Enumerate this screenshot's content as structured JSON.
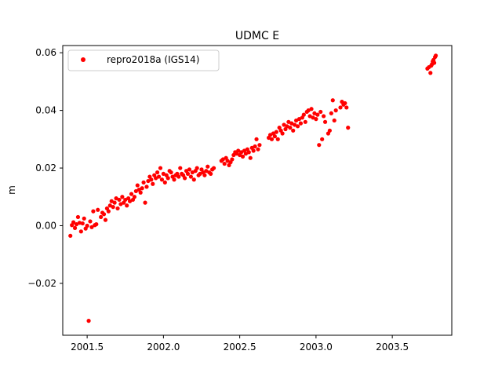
{
  "chart_data": {
    "type": "scatter",
    "title": "UDMC E",
    "xlabel": "",
    "ylabel": "m",
    "xlim": [
      2001.34,
      2003.89
    ],
    "ylim": [
      -0.038,
      0.0625
    ],
    "x_ticks": [
      2001.5,
      2002.0,
      2002.5,
      2003.0,
      2003.5
    ],
    "x_tick_labels": [
      "2001.5",
      "2002.0",
      "2002.5",
      "2003.0",
      "2003.5"
    ],
    "y_ticks": [
      -0.02,
      0.0,
      0.02,
      0.04,
      0.06
    ],
    "y_tick_labels": [
      "−0.02",
      "0.00",
      "0.02",
      "0.04",
      "0.06"
    ],
    "grid": false,
    "legend_position": "top-left",
    "series": [
      {
        "name": "repro2018a (IGS14)",
        "color": "#ff0000",
        "marker": "circle",
        "points": [
          [
            2001.39,
            -0.0035
          ],
          [
            2001.4,
            0.0002
          ],
          [
            2001.41,
            0.0012
          ],
          [
            2001.42,
            -0.0008
          ],
          [
            2001.43,
            0.0005
          ],
          [
            2001.44,
            0.003
          ],
          [
            2001.45,
            0.001
          ],
          [
            2001.46,
            -0.002
          ],
          [
            2001.47,
            0.0008
          ],
          [
            2001.48,
            0.0025
          ],
          [
            2001.49,
            -0.001
          ],
          [
            2001.5,
            0.0
          ],
          [
            2001.51,
            -0.033
          ],
          [
            2001.52,
            0.0015
          ],
          [
            2001.53,
            -0.0005
          ],
          [
            2001.54,
            0.005
          ],
          [
            2001.55,
            0.0002
          ],
          [
            2001.56,
            0.0005
          ],
          [
            2001.57,
            0.0055
          ],
          [
            2001.59,
            0.003
          ],
          [
            2001.6,
            0.0045
          ],
          [
            2001.61,
            0.004
          ],
          [
            2001.62,
            0.002
          ],
          [
            2001.63,
            0.006
          ],
          [
            2001.64,
            0.005
          ],
          [
            2001.65,
            0.007
          ],
          [
            2001.66,
            0.0085
          ],
          [
            2001.67,
            0.0065
          ],
          [
            2001.68,
            0.008
          ],
          [
            2001.69,
            0.0095
          ],
          [
            2001.7,
            0.006
          ],
          [
            2001.71,
            0.009
          ],
          [
            2001.72,
            0.0075
          ],
          [
            2001.73,
            0.01
          ],
          [
            2001.74,
            0.008
          ],
          [
            2001.75,
            0.009
          ],
          [
            2001.76,
            0.007
          ],
          [
            2001.77,
            0.0095
          ],
          [
            2001.78,
            0.0085
          ],
          [
            2001.79,
            0.011
          ],
          [
            2001.8,
            0.009
          ],
          [
            2001.81,
            0.01
          ],
          [
            2001.82,
            0.012
          ],
          [
            2001.83,
            0.014
          ],
          [
            2001.84,
            0.0125
          ],
          [
            2001.85,
            0.0115
          ],
          [
            2001.86,
            0.013
          ],
          [
            2001.87,
            0.015
          ],
          [
            2001.88,
            0.008
          ],
          [
            2001.89,
            0.0135
          ],
          [
            2001.9,
            0.0155
          ],
          [
            2001.91,
            0.017
          ],
          [
            2001.92,
            0.016
          ],
          [
            2001.93,
            0.0145
          ],
          [
            2001.94,
            0.0175
          ],
          [
            2001.95,
            0.0165
          ],
          [
            2001.96,
            0.0185
          ],
          [
            2001.97,
            0.017
          ],
          [
            2001.98,
            0.02
          ],
          [
            2001.99,
            0.016
          ],
          [
            2002.0,
            0.018
          ],
          [
            2002.01,
            0.015
          ],
          [
            2002.02,
            0.0175
          ],
          [
            2002.03,
            0.0165
          ],
          [
            2002.04,
            0.019
          ],
          [
            2002.05,
            0.0185
          ],
          [
            2002.06,
            0.017
          ],
          [
            2002.07,
            0.016
          ],
          [
            2002.08,
            0.0175
          ],
          [
            2002.09,
            0.018
          ],
          [
            2002.1,
            0.017
          ],
          [
            2002.11,
            0.02
          ],
          [
            2002.12,
            0.018
          ],
          [
            2002.13,
            0.0175
          ],
          [
            2002.14,
            0.0165
          ],
          [
            2002.15,
            0.019
          ],
          [
            2002.16,
            0.018
          ],
          [
            2002.17,
            0.0195
          ],
          [
            2002.18,
            0.017
          ],
          [
            2002.19,
            0.0185
          ],
          [
            2002.2,
            0.016
          ],
          [
            2002.21,
            0.019
          ],
          [
            2002.22,
            0.02
          ],
          [
            2002.23,
            0.0175
          ],
          [
            2002.24,
            0.018
          ],
          [
            2002.25,
            0.0195
          ],
          [
            2002.26,
            0.0185
          ],
          [
            2002.27,
            0.0175
          ],
          [
            2002.28,
            0.019
          ],
          [
            2002.29,
            0.0205
          ],
          [
            2002.3,
            0.0185
          ],
          [
            2002.31,
            0.018
          ],
          [
            2002.32,
            0.0195
          ],
          [
            2002.33,
            0.02
          ],
          [
            2002.38,
            0.0225
          ],
          [
            2002.39,
            0.023
          ],
          [
            2002.4,
            0.0215
          ],
          [
            2002.41,
            0.0235
          ],
          [
            2002.42,
            0.0225
          ],
          [
            2002.43,
            0.021
          ],
          [
            2002.44,
            0.022
          ],
          [
            2002.45,
            0.023
          ],
          [
            2002.46,
            0.0245
          ],
          [
            2002.47,
            0.0255
          ],
          [
            2002.48,
            0.025
          ],
          [
            2002.49,
            0.026
          ],
          [
            2002.5,
            0.0245
          ],
          [
            2002.51,
            0.0255
          ],
          [
            2002.52,
            0.024
          ],
          [
            2002.53,
            0.026
          ],
          [
            2002.54,
            0.025
          ],
          [
            2002.55,
            0.0265
          ],
          [
            2002.56,
            0.0255
          ],
          [
            2002.57,
            0.0235
          ],
          [
            2002.58,
            0.027
          ],
          [
            2002.59,
            0.026
          ],
          [
            2002.6,
            0.0275
          ],
          [
            2002.61,
            0.03
          ],
          [
            2002.62,
            0.0265
          ],
          [
            2002.63,
            0.028
          ],
          [
            2002.69,
            0.0305
          ],
          [
            2002.7,
            0.0315
          ],
          [
            2002.71,
            0.03
          ],
          [
            2002.72,
            0.032
          ],
          [
            2002.73,
            0.031
          ],
          [
            2002.74,
            0.0325
          ],
          [
            2002.75,
            0.03
          ],
          [
            2002.76,
            0.034
          ],
          [
            2002.77,
            0.033
          ],
          [
            2002.78,
            0.032
          ],
          [
            2002.79,
            0.035
          ],
          [
            2002.8,
            0.0335
          ],
          [
            2002.81,
            0.0345
          ],
          [
            2002.82,
            0.036
          ],
          [
            2002.83,
            0.034
          ],
          [
            2002.84,
            0.0355
          ],
          [
            2002.85,
            0.033
          ],
          [
            2002.86,
            0.035
          ],
          [
            2002.87,
            0.0365
          ],
          [
            2002.88,
            0.0345
          ],
          [
            2002.89,
            0.037
          ],
          [
            2002.9,
            0.0355
          ],
          [
            2002.91,
            0.0375
          ],
          [
            2002.92,
            0.0385
          ],
          [
            2002.93,
            0.036
          ],
          [
            2002.94,
            0.0395
          ],
          [
            2002.95,
            0.04
          ],
          [
            2002.96,
            0.038
          ],
          [
            2002.97,
            0.0405
          ],
          [
            2002.98,
            0.0375
          ],
          [
            2002.99,
            0.039
          ],
          [
            2003.0,
            0.037
          ],
          [
            2003.01,
            0.0385
          ],
          [
            2003.02,
            0.028
          ],
          [
            2003.03,
            0.0395
          ],
          [
            2003.04,
            0.03
          ],
          [
            2003.05,
            0.038
          ],
          [
            2003.06,
            0.036
          ],
          [
            2003.08,
            0.032
          ],
          [
            2003.09,
            0.033
          ],
          [
            2003.1,
            0.039
          ],
          [
            2003.11,
            0.0435
          ],
          [
            2003.12,
            0.0365
          ],
          [
            2003.13,
            0.04
          ],
          [
            2003.16,
            0.041
          ],
          [
            2003.17,
            0.043
          ],
          [
            2003.18,
            0.042
          ],
          [
            2003.19,
            0.0425
          ],
          [
            2003.2,
            0.041
          ],
          [
            2003.21,
            0.034
          ],
          [
            2003.73,
            0.0545
          ],
          [
            2003.74,
            0.055
          ],
          [
            2003.75,
            0.053
          ],
          [
            2003.755,
            0.0555
          ],
          [
            2003.76,
            0.056
          ],
          [
            2003.765,
            0.057
          ],
          [
            2003.77,
            0.0575
          ],
          [
            2003.775,
            0.0565
          ],
          [
            2003.78,
            0.0585
          ],
          [
            2003.785,
            0.059
          ]
        ]
      }
    ]
  }
}
